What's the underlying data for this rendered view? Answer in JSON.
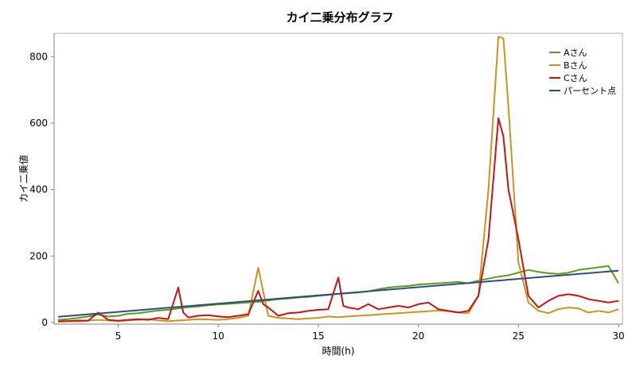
{
  "chart_data": {
    "type": "line",
    "title": "カイ二乗分布グラフ",
    "xlabel": "時間(h)",
    "ylabel": "カイ二乗値",
    "xlim": [
      1.8,
      30.2
    ],
    "ylim": [
      -5,
      870
    ],
    "x_ticks": [
      5,
      10,
      15,
      20,
      25,
      30
    ],
    "y_ticks": [
      0,
      200,
      400,
      600,
      800
    ],
    "grid": false,
    "legend_position": "top-right",
    "series": [
      {
        "name": "Aさん",
        "color": "#5c9a1e",
        "x": [
          2.0,
          2.5,
          3.0,
          3.5,
          4.0,
          4.5,
          5.0,
          5.5,
          6.0,
          6.5,
          7.0,
          7.5,
          8.0,
          8.5,
          9.0,
          9.5,
          10.0,
          10.5,
          11.0,
          11.5,
          12.0,
          12.5,
          13.0,
          13.5,
          14.0,
          14.5,
          15.0,
          15.5,
          16.0,
          16.5,
          17.0,
          17.5,
          18.0,
          18.5,
          19.0,
          19.5,
          20.0,
          20.5,
          21.0,
          21.5,
          22.0,
          22.5,
          23.0,
          23.5,
          24.0,
          24.5,
          25.0,
          25.5,
          26.0,
          26.5,
          27.0,
          27.5,
          28.0,
          28.5,
          29.0,
          29.5,
          30.0
        ],
        "values": [
          8,
          10,
          14,
          18,
          24,
          18,
          20,
          26,
          28,
          32,
          36,
          38,
          42,
          46,
          48,
          52,
          54,
          56,
          58,
          60,
          62,
          66,
          70,
          72,
          75,
          77,
          80,
          83,
          86,
          88,
          90,
          94,
          100,
          105,
          108,
          110,
          114,
          116,
          118,
          120,
          122,
          118,
          126,
          132,
          138,
          142,
          150,
          158,
          152,
          148,
          146,
          150,
          158,
          162,
          166,
          170,
          118
        ]
      },
      {
        "name": "Bさん",
        "color": "#c9941b",
        "x": [
          2.0,
          2.5,
          3.0,
          3.5,
          4.0,
          4.5,
          5.0,
          5.5,
          6.0,
          6.5,
          7.0,
          7.5,
          8.0,
          8.5,
          9.0,
          9.5,
          10.0,
          10.5,
          11.0,
          11.5,
          12.0,
          12.5,
          13.0,
          13.5,
          14.0,
          14.5,
          15.0,
          15.5,
          16.0,
          16.5,
          17.0,
          17.5,
          18.0,
          18.5,
          19.0,
          19.5,
          20.0,
          20.5,
          21.0,
          21.5,
          22.0,
          22.5,
          23.0,
          23.5,
          24.0,
          24.25,
          24.5,
          25.0,
          25.5,
          26.0,
          26.5,
          27.0,
          27.5,
          28.0,
          28.5,
          29.0,
          29.5,
          30.0
        ],
        "values": [
          5,
          4,
          3,
          6,
          8,
          6,
          4,
          6,
          8,
          10,
          6,
          4,
          6,
          8,
          10,
          9,
          8,
          10,
          14,
          20,
          165,
          20,
          14,
          12,
          10,
          12,
          14,
          18,
          16,
          18,
          20,
          22,
          24,
          26,
          28,
          30,
          32,
          34,
          36,
          34,
          30,
          28,
          80,
          400,
          860,
          855,
          650,
          180,
          60,
          35,
          28,
          40,
          45,
          42,
          30,
          35,
          30,
          40
        ]
      },
      {
        "name": "Cさん",
        "color": "#c61414",
        "x": [
          2.0,
          2.5,
          3.0,
          3.5,
          4.0,
          4.5,
          5.0,
          5.5,
          6.0,
          6.5,
          7.0,
          7.5,
          8.0,
          8.25,
          8.5,
          9.0,
          9.5,
          10.0,
          10.5,
          11.0,
          11.5,
          12.0,
          12.25,
          12.5,
          13.0,
          13.5,
          14.0,
          14.5,
          15.0,
          15.5,
          16.0,
          16.25,
          16.5,
          17.0,
          17.5,
          18.0,
          18.5,
          19.0,
          19.5,
          20.0,
          20.5,
          21.0,
          21.5,
          22.0,
          22.5,
          23.0,
          23.5,
          24.0,
          24.25,
          24.5,
          25.0,
          25.5,
          26.0,
          26.5,
          27.0,
          27.5,
          28.0,
          28.5,
          29.0,
          29.5,
          30.0
        ],
        "values": [
          3,
          4,
          6,
          5,
          30,
          8,
          5,
          8,
          10,
          8,
          14,
          10,
          105,
          30,
          15,
          20,
          22,
          18,
          16,
          20,
          25,
          95,
          55,
          45,
          20,
          28,
          30,
          35,
          38,
          40,
          135,
          50,
          45,
          40,
          55,
          40,
          45,
          50,
          45,
          55,
          60,
          40,
          35,
          30,
          35,
          80,
          250,
          615,
          560,
          400,
          250,
          80,
          45,
          65,
          80,
          85,
          80,
          70,
          65,
          60,
          65
        ]
      },
      {
        "name": "パーセント点",
        "color": "#2e4d7e",
        "x": [
          2.0,
          30.0
        ],
        "values": [
          17,
          156
        ]
      }
    ]
  }
}
